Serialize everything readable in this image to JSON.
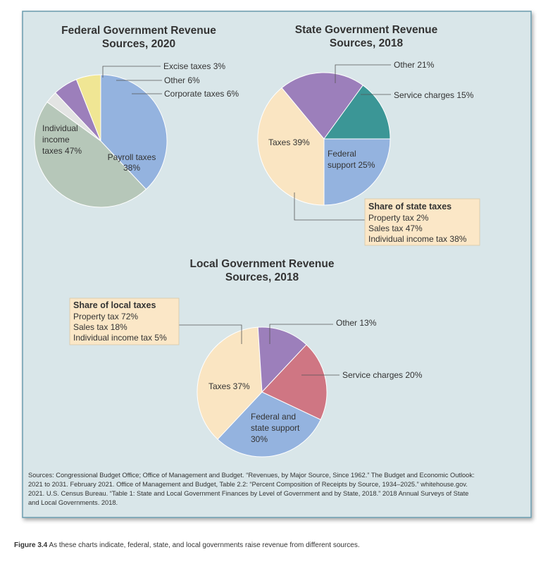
{
  "colors": {
    "panel_bg": "#d9e6e9",
    "panel_border": "#6a9cae",
    "individual_income": "#b6c7b9",
    "excise": "#e3e4e3",
    "other": "#9c7fbb",
    "corporate": "#f0e694",
    "payroll": "#94b3df",
    "taxes": "#fae5c2",
    "federal_support": "#94b3df",
    "service_charges": "#3b9696",
    "local_service_charges": "#cf7683",
    "box_bg": "#fbe7c7"
  },
  "chart_data": [
    {
      "type": "pie",
      "title_lines": [
        "Federal Government Revenue",
        "Sources, 2020"
      ],
      "slices": [
        {
          "label": "Payroll taxes 38%",
          "value": 38,
          "color_key": "payroll"
        },
        {
          "label": "Individual income taxes 47%",
          "value": 47,
          "color_key": "individual_income"
        },
        {
          "label": "Excise taxes 3%",
          "value": 3,
          "color_key": "excise"
        },
        {
          "label": "Other 6%",
          "value": 6,
          "color_key": "other"
        },
        {
          "label": "Corporate taxes 6%",
          "value": 6,
          "color_key": "corporate"
        }
      ],
      "label_lines": {
        "individual": [
          "Individual",
          "income",
          "taxes 47%"
        ],
        "payroll": [
          "Payroll taxes",
          "38%"
        ],
        "excise": "Excise taxes 3%",
        "other": "Other 6%",
        "corporate": "Corporate taxes 6%"
      }
    },
    {
      "type": "pie",
      "title_lines": [
        "State Government Revenue",
        "Sources, 2018"
      ],
      "slices": [
        {
          "label": "Federal support 25%",
          "value": 25,
          "color_key": "federal_support"
        },
        {
          "label": "Taxes 39%",
          "value": 39,
          "color_key": "taxes"
        },
        {
          "label": "Other 21%",
          "value": 21,
          "color_key": "other"
        },
        {
          "label": "Service charges 15%",
          "value": 15,
          "color_key": "service_charges"
        }
      ],
      "label_lines": {
        "taxes": "Taxes 39%",
        "federal": [
          "Federal",
          "support 25%"
        ],
        "other": "Other 21%",
        "service": "Service charges 15%"
      },
      "share_box": {
        "title": "Share of state taxes",
        "items": [
          "Property tax 2%",
          "Sales tax 47%",
          "Individual income tax 38%"
        ]
      }
    },
    {
      "type": "pie",
      "title_lines": [
        "Local Government Revenue",
        "Sources, 2018"
      ],
      "slices": [
        {
          "label": "Federal and state support 30%",
          "value": 30,
          "color_key": "federal_support"
        },
        {
          "label": "Taxes 37%",
          "value": 37,
          "color_key": "taxes"
        },
        {
          "label": "Other 13%",
          "value": 13,
          "color_key": "other"
        },
        {
          "label": "Service charges 20%",
          "value": 20,
          "color_key": "local_service_charges"
        }
      ],
      "label_lines": {
        "taxes": "Taxes 37%",
        "federal": [
          "Federal and",
          "state support",
          "30%"
        ],
        "other": "Other 13%",
        "service": "Service charges 20%"
      },
      "share_box": {
        "title": "Share of local taxes",
        "items": [
          "Property tax 72%",
          "Sales tax 18%",
          "Individual income tax 5%"
        ]
      }
    }
  ],
  "sources": [
    "Sources: Congressional Budget Office; Office of Management and Budget. “Revenues, by Major Source, Since 1962.” The Budget and Economic Outlook:",
    "2021 to 2031. February 2021. Office of Management and Budget, Table 2.2: “Percent Composition of Receipts by Source, 1934–2025.” whitehouse.gov.",
    "2021. U.S. Census Bureau. “Table 1: State and Local Government Finances by Level of Government and by State, 2018.” 2018 Annual Surveys of State",
    "and Local Governments. 2018."
  ],
  "caption": {
    "figure_label": "Figure 3.4",
    "text": " As these charts indicate, federal, state, and local governments raise revenue from different sources."
  }
}
